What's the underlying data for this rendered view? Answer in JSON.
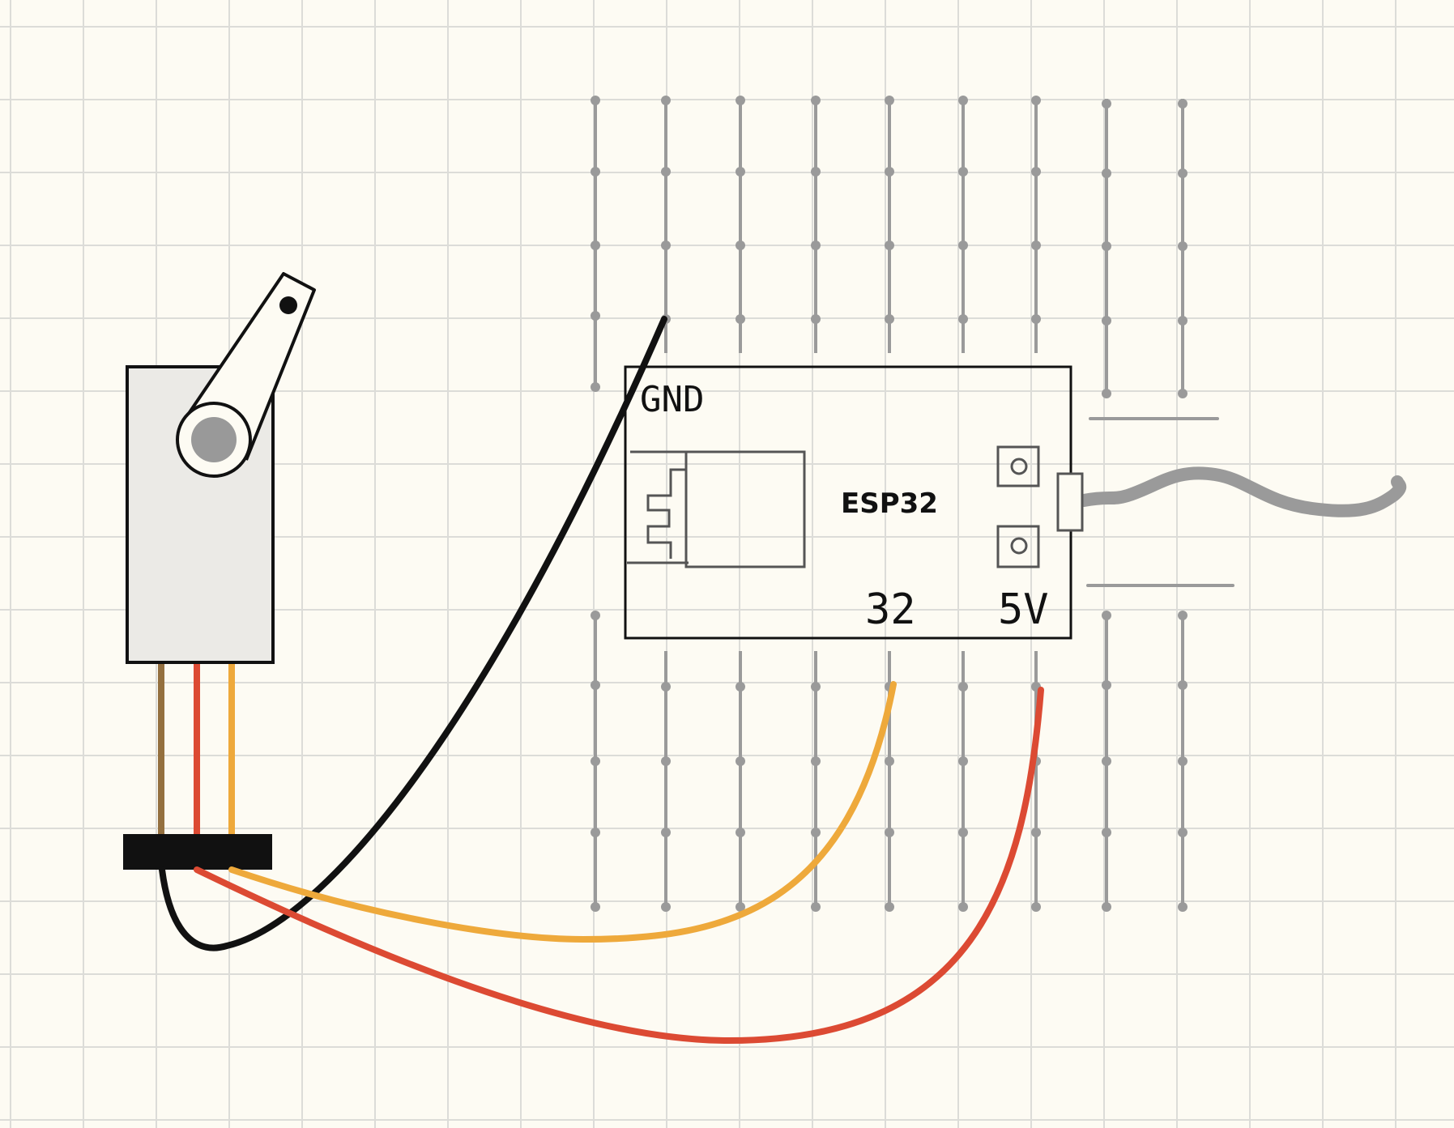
{
  "diagram": {
    "labels": {
      "gnd": "GND",
      "board": "ESP32",
      "pin_signal": "32",
      "pin_power": "5V"
    },
    "colors": {
      "background": "#fdfbf3",
      "grid": "#dcdcd8",
      "breadboard": "#9a9a9a",
      "servo_body": "#ebeae6",
      "servo_hub": "#999999",
      "wire_ground": "#111111",
      "wire_signal": "#eea93b",
      "wire_power": "#dc4a33",
      "servo_lead_brown": "#94703f",
      "usb_cable": "#9a9a9a"
    },
    "icons": [
      "servo-motor-icon",
      "servo-horn-icon",
      "header-connector-icon",
      "usb-connector-icon"
    ]
  }
}
